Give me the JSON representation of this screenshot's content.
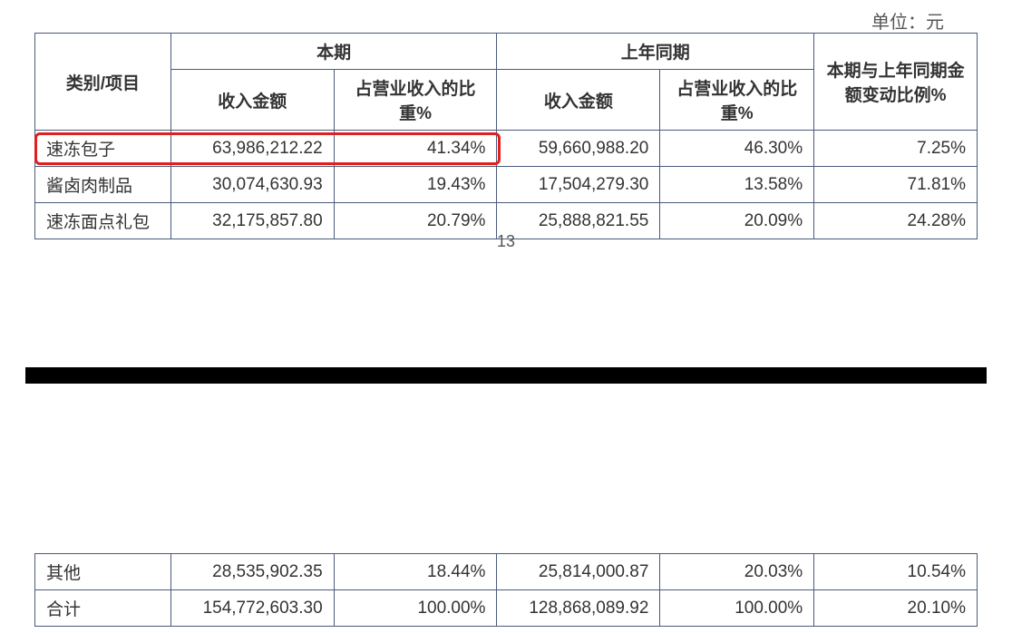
{
  "unit_label": "单位：元",
  "page_number": "13",
  "table_top": {
    "headers": {
      "category": "类别/项目",
      "current_period": "本期",
      "prior_period": "上年同期",
      "change": "本期与上年同期金额变动比例%",
      "revenue_amount": "收入金额",
      "pct_of_revenue_1": "占营业收入的比重%",
      "revenue_amount_2": "收入金额",
      "pct_of_revenue_2": "占营业收入的比重%"
    },
    "rows": [
      {
        "category": "速冻包子",
        "amt1": "63,986,212.22",
        "pct1": "41.34%",
        "amt2": "59,660,988.20",
        "pct2": "46.30%",
        "change": "7.25%"
      },
      {
        "category": "酱卤肉制品",
        "amt1": "30,074,630.93",
        "pct1": "19.43%",
        "amt2": "17,504,279.30",
        "pct2": "13.58%",
        "change": "71.81%"
      },
      {
        "category": "速冻面点礼包",
        "amt1": "32,175,857.80",
        "pct1": "20.79%",
        "amt2": "25,888,821.55",
        "pct2": "20.09%",
        "change": "24.28%"
      }
    ]
  },
  "table_bottom": {
    "rows": [
      {
        "category": "其他",
        "amt1": "28,535,902.35",
        "pct1": "18.44%",
        "amt2": "25,814,000.87",
        "pct2": "20.03%",
        "change": "10.54%"
      },
      {
        "category": "合计",
        "amt1": "154,772,603.30",
        "pct1": "100.00%",
        "amt2": "128,868,089.92",
        "pct2": "100.00%",
        "change": "20.10%"
      }
    ]
  },
  "styling": {
    "border_color": "#4a5a7a",
    "highlight_color": "#e02020",
    "text_color": "#333333",
    "separator_color": "#000000",
    "background_color": "#ffffff",
    "font_family": "Microsoft YaHei, SimSun, sans-serif",
    "cell_fontsize": 19,
    "header_fontweight": "bold"
  }
}
